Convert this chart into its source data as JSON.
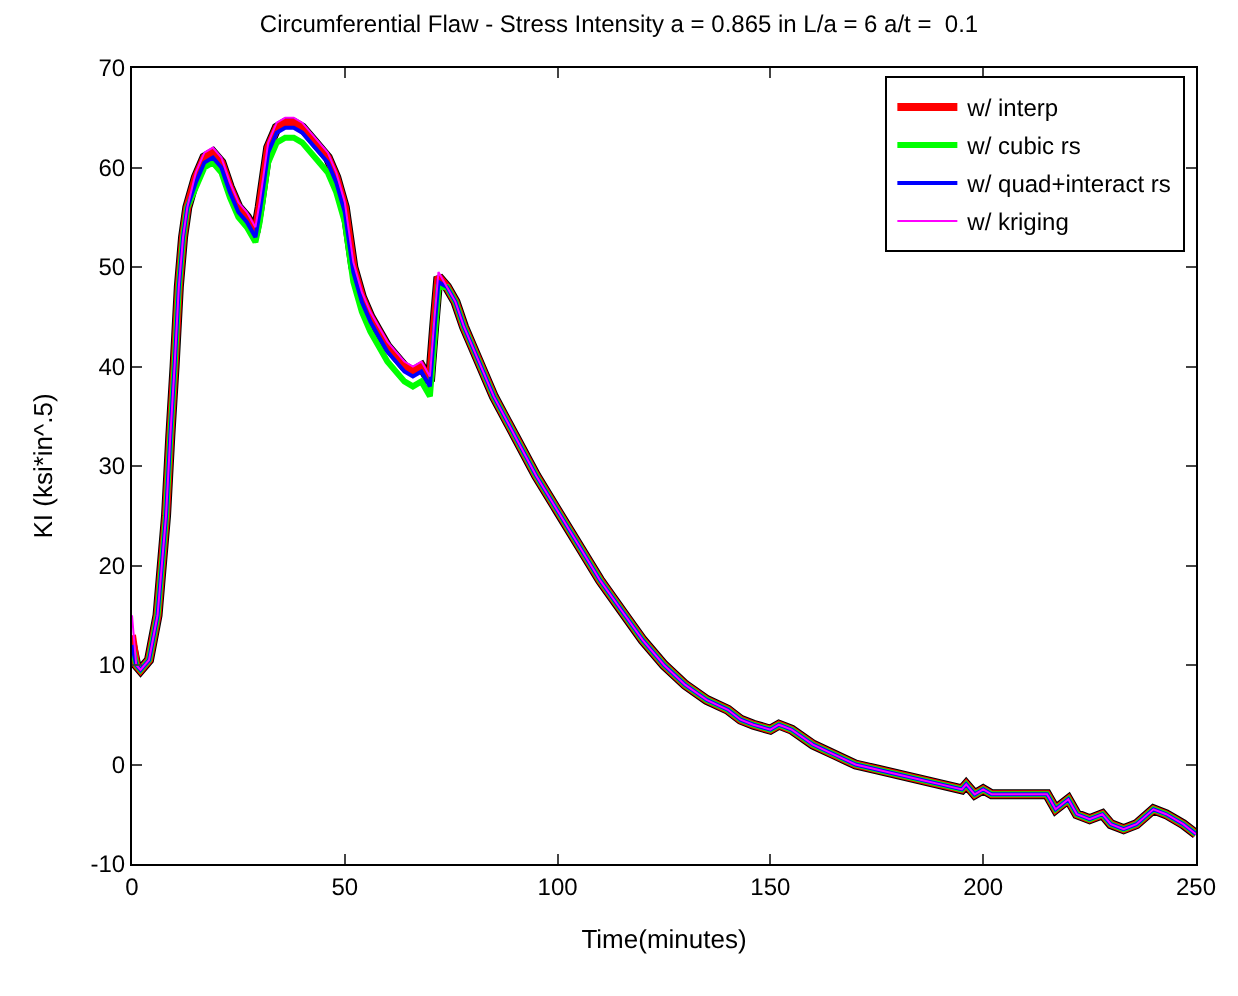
{
  "chart_data": {
    "type": "line",
    "title": "Circumferential Flaw - Stress Intensity a = 0.865 in L/a = 6 a/t =  0.1",
    "xlabel": "Time(minutes)",
    "ylabel": "KI (ksi*in^.5)",
    "x": [
      0,
      1,
      2,
      4,
      6,
      8,
      9,
      10,
      11,
      12,
      13,
      15,
      17,
      19,
      21,
      23,
      25,
      27,
      29,
      30,
      32,
      34,
      36,
      38,
      40,
      43,
      46,
      48,
      50,
      52,
      54,
      56,
      58,
      60,
      62,
      64,
      66,
      68,
      70,
      71,
      72,
      74,
      76,
      78,
      80,
      85,
      90,
      95,
      100,
      105,
      110,
      115,
      120,
      125,
      130,
      135,
      140,
      143,
      146,
      150,
      152,
      155,
      160,
      165,
      170,
      175,
      180,
      185,
      190,
      195,
      196,
      198,
      200,
      202,
      205,
      210,
      215,
      217,
      220,
      222,
      225,
      228,
      230,
      233,
      236,
      240,
      243,
      247,
      250
    ],
    "series": [
      {
        "color": "#000000",
        "values": [
          12,
          10,
          9.5,
          10.5,
          15,
          25,
          33,
          40,
          48,
          53,
          56,
          59,
          61,
          61.5,
          60.5,
          58,
          56,
          55,
          53.5,
          56,
          62,
          64,
          64.5,
          64.5,
          64,
          62.5,
          61,
          59,
          56,
          50,
          47,
          45,
          43.5,
          42,
          41,
          40,
          39.5,
          40,
          38.5,
          44,
          49,
          48,
          46.5,
          44,
          42,
          37,
          33,
          29,
          25.5,
          22,
          18.5,
          15.5,
          12.5,
          10,
          8,
          6.5,
          5.5,
          4.5,
          4,
          3.5,
          4,
          3.5,
          2,
          1,
          0,
          -0.5,
          -1,
          -1.5,
          -2,
          -2.5,
          -2,
          -3,
          -2.5,
          -3,
          -3,
          -3,
          -3,
          -4.5,
          -3.5,
          -5,
          -5.5,
          -5,
          -6,
          -6.5,
          -6,
          -4.5,
          -5,
          -6,
          -7
        ]
      },
      {
        "name": "w/ interp",
        "color": "#ff0000",
        "values": [
          13,
          10,
          9.5,
          10.5,
          15,
          25,
          33,
          40,
          48,
          53,
          56,
          59,
          61,
          61.5,
          60.5,
          58,
          56,
          55,
          53.5,
          56,
          62,
          64,
          64.5,
          64.5,
          64,
          62.5,
          61,
          59,
          56,
          50,
          47,
          45,
          43.5,
          42,
          41,
          40,
          39.5,
          40,
          38.5,
          44,
          49,
          48,
          46.5,
          44,
          42,
          37,
          33,
          29,
          25.5,
          22,
          18.5,
          15.5,
          12.5,
          10,
          8,
          6.5,
          5.5,
          4.5,
          4,
          3.5,
          4,
          3.5,
          2,
          1,
          0,
          -0.5,
          -1,
          -1.5,
          -2,
          -2.5,
          -2,
          -3,
          -2.5,
          -3,
          -3,
          -3,
          -3,
          -4.5,
          -3.5,
          -5,
          -5.5,
          -5,
          -6,
          -6.5,
          -6,
          -4.5,
          -5,
          -6,
          -7
        ]
      },
      {
        "name": "w/ cubic rs",
        "color": "#00ff00",
        "values": [
          12,
          10,
          9.5,
          10.5,
          15,
          25,
          33,
          40,
          48,
          53,
          56,
          58,
          60,
          60.5,
          59.5,
          57,
          55,
          54,
          52.5,
          54.5,
          60.5,
          62.5,
          63,
          63,
          62.5,
          61,
          59.5,
          57.5,
          54.5,
          48.5,
          45.5,
          43.5,
          42,
          40.5,
          39.5,
          38.5,
          38,
          38.5,
          37,
          42.5,
          48,
          48,
          46.5,
          44,
          42,
          37,
          33,
          29,
          25.5,
          22,
          18.5,
          15.5,
          12.5,
          10,
          8,
          6.5,
          5.5,
          4.5,
          4,
          3.5,
          4,
          3.5,
          2,
          1,
          0,
          -0.5,
          -1,
          -1.5,
          -2,
          -2.5,
          -2,
          -3,
          -2.5,
          -3,
          -3,
          -3,
          -3,
          -4.5,
          -3.5,
          -5,
          -5.5,
          -5,
          -6,
          -6.5,
          -6,
          -4.5,
          -5,
          -6,
          -7
        ]
      },
      {
        "name": "w/ quad+interact rs",
        "color": "#0000ff",
        "values": [
          12,
          10,
          9.5,
          10.5,
          15,
          25,
          33,
          40,
          48,
          53,
          56,
          58.5,
          60.5,
          61,
          60,
          57.5,
          55.5,
          54.5,
          53,
          55.5,
          61.5,
          63.5,
          64,
          64,
          63.5,
          62,
          60.5,
          58.5,
          55.5,
          49.5,
          46.5,
          44.5,
          43,
          41.5,
          40.5,
          39.5,
          39,
          39.5,
          38,
          43.5,
          48.5,
          48,
          46.5,
          44,
          42,
          37,
          33,
          29,
          25.5,
          22,
          18.5,
          15.5,
          12.5,
          10,
          8,
          6.5,
          5.5,
          4.5,
          4,
          3.5,
          4,
          3.5,
          2,
          1,
          0,
          -0.5,
          -1,
          -1.5,
          -2,
          -2.5,
          -2,
          -3,
          -2.5,
          -3,
          -3,
          -3,
          -3,
          -4.5,
          -3.5,
          -5,
          -5.5,
          -5,
          -6,
          -6.5,
          -6,
          -4.5,
          -5,
          -6,
          -7
        ]
      },
      {
        "name": "w/ kriging",
        "color": "#ff00ff",
        "values": [
          15,
          10,
          9.5,
          10.5,
          15,
          25,
          33,
          40,
          48,
          53,
          56,
          59.5,
          61.5,
          62,
          61,
          58.5,
          56.5,
          55.5,
          54,
          56.5,
          62.5,
          64.5,
          65,
          65,
          64.5,
          63,
          61.5,
          59.5,
          56.5,
          50.5,
          47.5,
          45.5,
          44,
          42.5,
          41.5,
          40.5,
          40,
          40.5,
          39,
          44.5,
          49.5,
          48,
          46.5,
          44,
          42,
          37,
          33,
          29,
          25.5,
          22,
          18.5,
          15.5,
          12.5,
          10,
          8,
          6.5,
          5.5,
          4.5,
          4,
          3.5,
          4,
          3.5,
          2,
          1,
          0,
          -0.5,
          -1,
          -1.5,
          -2,
          -2.5,
          -2,
          -3,
          -2.5,
          -3,
          -3,
          -3,
          -3,
          -4.5,
          -3.5,
          -5,
          -5.5,
          -5,
          -6,
          -6.5,
          -6,
          -4.5,
          -5,
          -6,
          -7
        ]
      }
    ],
    "xlim": [
      0,
      250
    ],
    "xticks": [
      0,
      50,
      100,
      150,
      200,
      250
    ],
    "ylim": [
      -10,
      70
    ],
    "yticks": [
      -10,
      0,
      10,
      20,
      30,
      40,
      50,
      60,
      70
    ],
    "grid": false,
    "legend": "top right",
    "marker": "none",
    "line_style": "solid"
  }
}
